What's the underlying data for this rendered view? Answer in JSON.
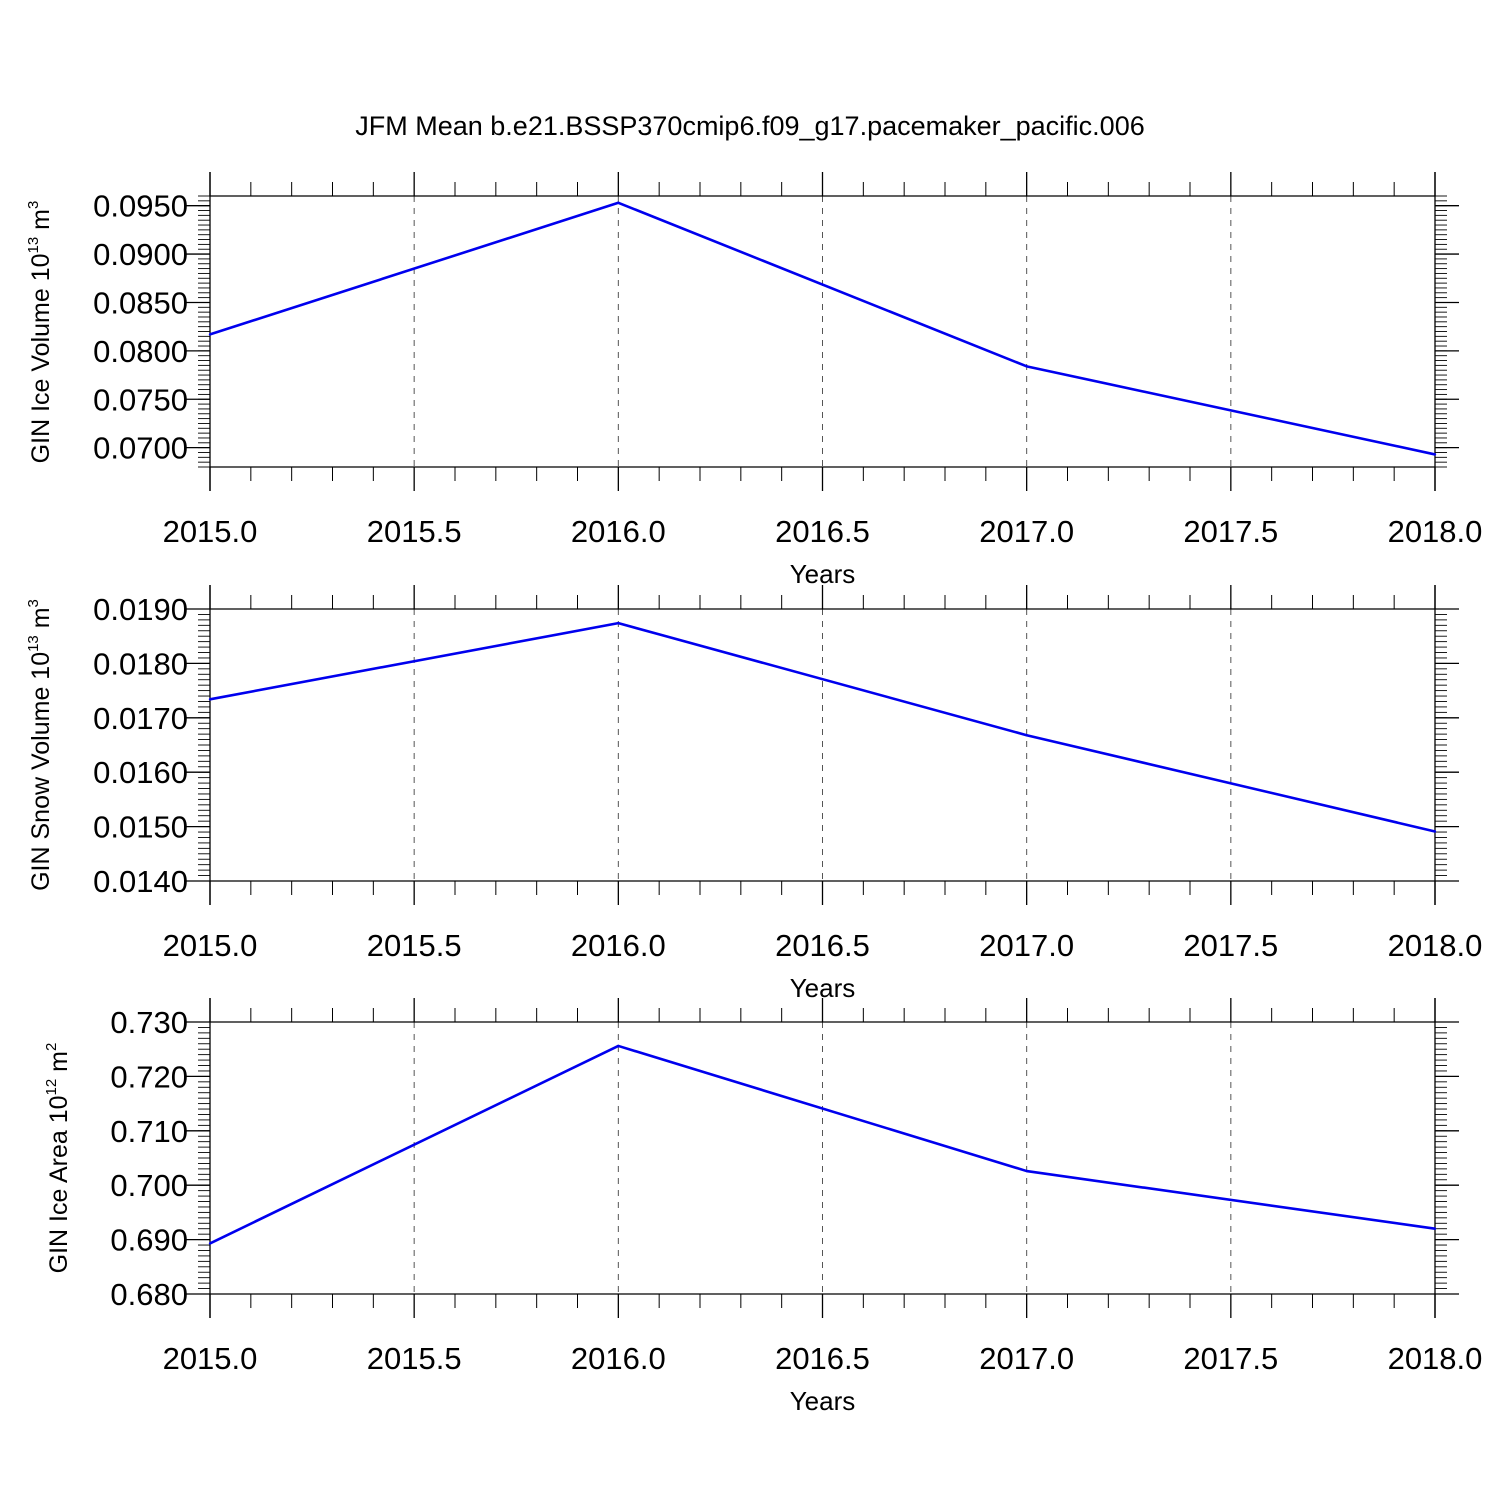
{
  "title": "JFM Mean b.e21.BSSP370cmip6.f09_g17.pacemaker_pacific.006",
  "colors": {
    "series": "#0000ee",
    "axis": "#000000",
    "grid": "#555555"
  },
  "chart_data": [
    {
      "type": "line",
      "x": [
        2015,
        2016,
        2017,
        2018
      ],
      "series": [
        {
          "values": [
            0.0817,
            0.0953,
            0.0784,
            0.0693
          ]
        }
      ],
      "xlabel": "Years",
      "ylabel": {
        "text": "GIN Ice Volume 10",
        "sup1": "13",
        "mid": " m",
        "sup2": "3"
      },
      "xlim": [
        2015,
        2018
      ],
      "ylim": [
        0.068,
        0.096
      ],
      "xticks": [
        2015.0,
        2015.5,
        2016.0,
        2016.5,
        2017.0,
        2017.5,
        2018.0
      ],
      "xtick_labels": [
        "2015.0",
        "2015.5",
        "2016.0",
        "2016.5",
        "2017.0",
        "2017.5",
        "2018.0"
      ],
      "yticks": [
        0.07,
        0.075,
        0.08,
        0.085,
        0.09,
        0.095
      ],
      "ytick_labels": [
        "0.0700",
        "0.0750",
        "0.0800",
        "0.0850",
        "0.0900",
        "0.0950"
      ],
      "grid": "vertical dashed"
    },
    {
      "type": "line",
      "x": [
        2015,
        2016,
        2017,
        2018
      ],
      "series": [
        {
          "values": [
            0.01734,
            0.01874,
            0.01668,
            0.01491
          ]
        }
      ],
      "xlabel": "Years",
      "ylabel": {
        "text": "GIN Snow Volume 10",
        "sup1": "13",
        "mid": " m",
        "sup2": "3"
      },
      "xlim": [
        2015,
        2018
      ],
      "ylim": [
        0.014,
        0.019
      ],
      "xticks": [
        2015.0,
        2015.5,
        2016.0,
        2016.5,
        2017.0,
        2017.5,
        2018.0
      ],
      "xtick_labels": [
        "2015.0",
        "2015.5",
        "2016.0",
        "2016.5",
        "2017.0",
        "2017.5",
        "2018.0"
      ],
      "yticks": [
        0.014,
        0.015,
        0.016,
        0.017,
        0.018,
        0.019
      ],
      "ytick_labels": [
        "0.0140",
        "0.0150",
        "0.0160",
        "0.0170",
        "0.0180",
        "0.0190"
      ],
      "grid": "vertical dashed"
    },
    {
      "type": "line",
      "x": [
        2015,
        2016,
        2017,
        2018
      ],
      "series": [
        {
          "values": [
            0.6893,
            0.7256,
            0.7026,
            0.692
          ]
        }
      ],
      "xlabel": "Years",
      "ylabel": {
        "text": "GIN Ice Area 10",
        "sup1": "12",
        "mid": " m",
        "sup2": "2"
      },
      "xlim": [
        2015,
        2018
      ],
      "ylim": [
        0.68,
        0.73
      ],
      "xticks": [
        2015.0,
        2015.5,
        2016.0,
        2016.5,
        2017.0,
        2017.5,
        2018.0
      ],
      "xtick_labels": [
        "2015.0",
        "2015.5",
        "2016.0",
        "2016.5",
        "2017.0",
        "2017.5",
        "2018.0"
      ],
      "yticks": [
        0.68,
        0.69,
        0.7,
        0.71,
        0.72,
        0.73
      ],
      "ytick_labels": [
        "0.680",
        "0.690",
        "0.700",
        "0.710",
        "0.720",
        "0.730"
      ],
      "grid": "vertical dashed"
    }
  ]
}
